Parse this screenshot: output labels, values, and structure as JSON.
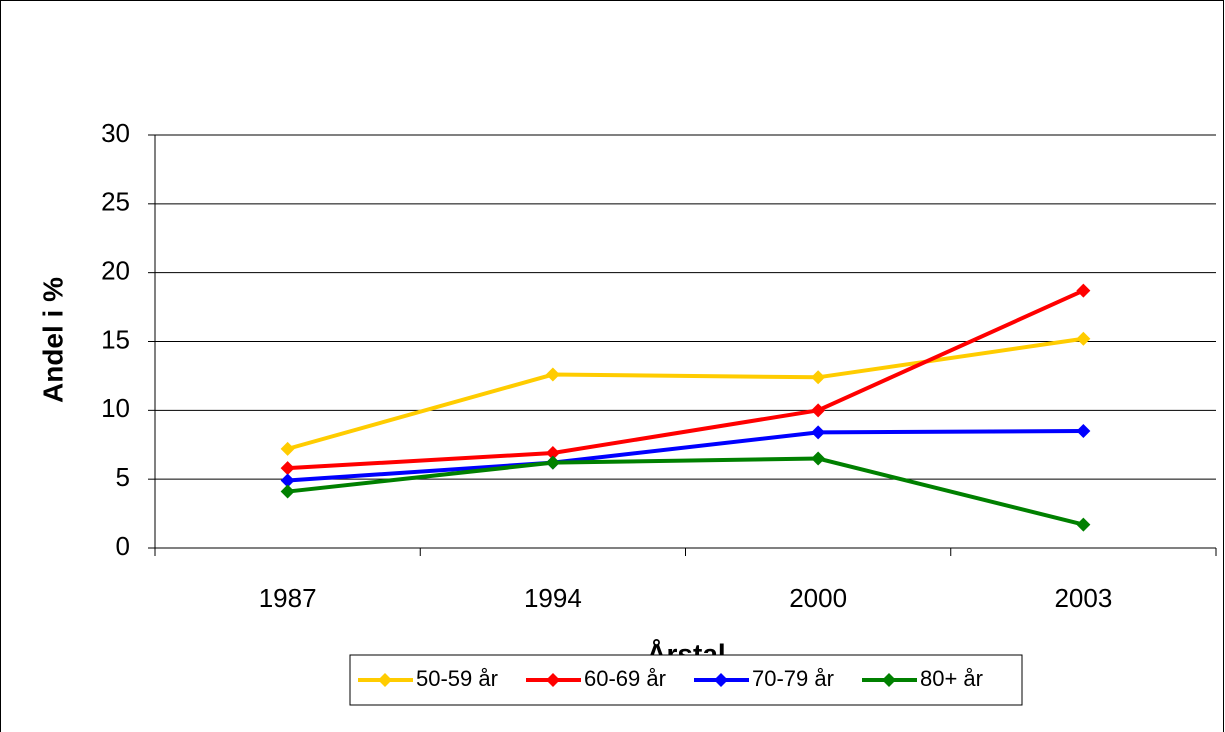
{
  "chart_data": {
    "type": "line",
    "x_label": "Årstal",
    "y_label": "Andel i %",
    "categories": [
      "1987",
      "1994",
      "2000",
      "2003"
    ],
    "series": [
      {
        "name": "50-59 år",
        "color": "#ffcc00",
        "values": [
          7.2,
          12.6,
          12.4,
          15.2
        ]
      },
      {
        "name": "60-69 år",
        "color": "#ff0000",
        "values": [
          5.8,
          6.9,
          10.0,
          18.7
        ]
      },
      {
        "name": "70-79 år",
        "color": "#0000ff",
        "values": [
          4.9,
          6.2,
          8.4,
          8.5
        ]
      },
      {
        "name": "80+ år",
        "color": "#008000",
        "values": [
          4.1,
          6.2,
          6.5,
          1.7
        ]
      }
    ],
    "ylim": [
      0,
      30
    ],
    "yticks": [
      0,
      5,
      10,
      15,
      20,
      25,
      30
    ],
    "grid": true,
    "legend": "bottom"
  }
}
